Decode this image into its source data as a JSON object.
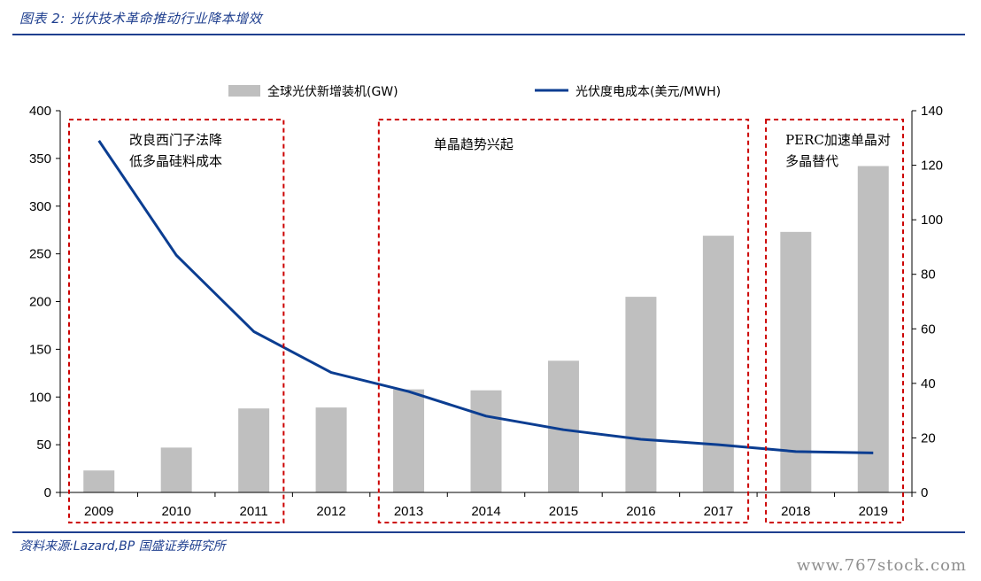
{
  "header": {
    "title": "图表 2:  光伏技术革命推动行业降本增效"
  },
  "footer": {
    "source": "资料来源:Lazard,BP 国盛证券研究所",
    "watermark": "www.767stock.com"
  },
  "chart_data": {
    "type": "bar",
    "categories": [
      "2009",
      "2010",
      "2011",
      "2012",
      "2013",
      "2014",
      "2015",
      "2016",
      "2017",
      "2018",
      "2019"
    ],
    "series": [
      {
        "name": "全球光伏新增装机(GW)",
        "type": "bar",
        "axis": "left",
        "color": "#bfbfbf",
        "values": [
          23,
          47,
          88,
          89,
          108,
          107,
          138,
          205,
          269,
          273,
          342
        ]
      },
      {
        "name": "光伏度电成本(美元/MWH)",
        "type": "line",
        "axis": "right",
        "color": "#0b3d91",
        "values": [
          129,
          87,
          59,
          44,
          37,
          28,
          23,
          19.5,
          17.5,
          15,
          14.5
        ]
      }
    ],
    "y_left": {
      "lim": [
        0,
        400
      ],
      "ticks": [
        0,
        50,
        100,
        150,
        200,
        250,
        300,
        350,
        400
      ]
    },
    "y_right": {
      "lim": [
        0,
        140
      ],
      "ticks": [
        0,
        20,
        40,
        60,
        80,
        100,
        120,
        140
      ]
    },
    "legend_placement": "top-center",
    "grid": false,
    "annotations": [
      {
        "lines": [
          "改良西门子法降",
          "低多晶硅料成本"
        ],
        "span": [
          "2009",
          "2011"
        ]
      },
      {
        "lines": [
          "单晶趋势兴起"
        ],
        "span": [
          "2013",
          "2017"
        ]
      },
      {
        "lines": [
          "PERC加速单晶对",
          "多晶替代"
        ],
        "span": [
          "2018",
          "2019"
        ]
      }
    ],
    "box_color": "#cc0000"
  }
}
